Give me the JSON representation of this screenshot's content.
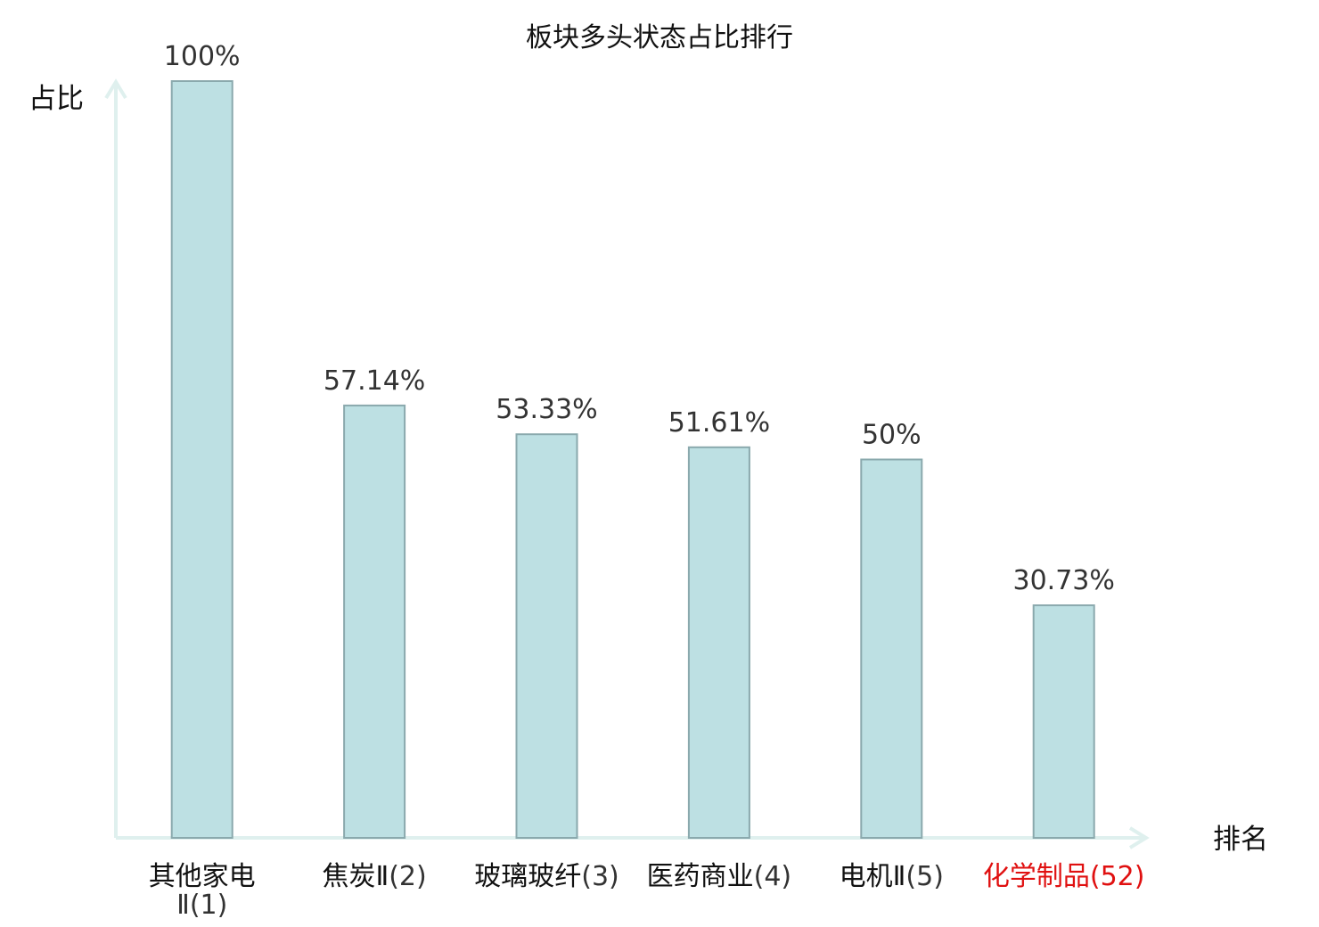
{
  "chart_data": {
    "type": "bar",
    "title": "板块多头状态占比排行",
    "ylabel": "占比",
    "xlabel": "排名",
    "ylim": [
      0,
      100
    ],
    "grid": false,
    "legend": "none",
    "categories": [
      {
        "name": "其他家电Ⅱ",
        "rank": "(1)",
        "highlight": false
      },
      {
        "name": "焦炭Ⅱ",
        "rank": "(2)",
        "highlight": false
      },
      {
        "name": "玻璃玻纤",
        "rank": "(3)",
        "highlight": false
      },
      {
        "name": "医药商业",
        "rank": "(4)",
        "highlight": false
      },
      {
        "name": "电机Ⅱ",
        "rank": "(5)",
        "highlight": false
      },
      {
        "name": "化学制品",
        "rank": "(52)",
        "highlight": true
      }
    ],
    "values": [
      100,
      57.14,
      53.33,
      51.61,
      50,
      30.73
    ],
    "value_labels": [
      "100%",
      "57.14%",
      "53.33%",
      "51.61%",
      "50%",
      "30.73%"
    ],
    "colors": {
      "bar_fill": "#bde0e3",
      "bar_stroke": "#8aa9ad",
      "axis": "#dff0ee",
      "label": "#111111",
      "rank_label": "#333333",
      "highlight": "#e01010"
    }
  }
}
